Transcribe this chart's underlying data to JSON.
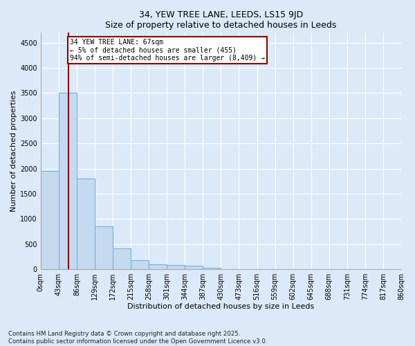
{
  "title1": "34, YEW TREE LANE, LEEDS, LS15 9JD",
  "title2": "Size of property relative to detached houses in Leeds",
  "xlabel": "Distribution of detached houses by size in Leeds",
  "ylabel": "Number of detached properties",
  "bar_values": [
    1950,
    3500,
    1800,
    850,
    420,
    175,
    100,
    80,
    70,
    30,
    0,
    0,
    0,
    0,
    0,
    0,
    0,
    0,
    0,
    0
  ],
  "bin_edges": [
    0,
    43,
    86,
    129,
    172,
    215,
    258,
    301,
    344,
    387,
    430,
    473,
    516,
    559,
    602,
    645,
    688,
    731,
    774,
    817,
    860
  ],
  "bar_color": "#c5d9f0",
  "bar_edge_color": "#6baed6",
  "property_line_x": 67,
  "property_line_color": "#8b0000",
  "annotation_line1": "34 YEW TREE LANE: 67sqm",
  "annotation_line2": "← 5% of detached houses are smaller (455)",
  "annotation_line3": "94% of semi-detached houses are larger (8,409) →",
  "annotation_box_facecolor": "white",
  "annotation_box_edgecolor": "#8b0000",
  "ylim": [
    0,
    4700
  ],
  "yticks": [
    0,
    500,
    1000,
    1500,
    2000,
    2500,
    3000,
    3500,
    4000,
    4500
  ],
  "x_labels": [
    "0sqm",
    "43sqm",
    "86sqm",
    "129sqm",
    "172sqm",
    "215sqm",
    "258sqm",
    "301sqm",
    "344sqm",
    "387sqm",
    "430sqm",
    "473sqm",
    "516sqm",
    "559sqm",
    "602sqm",
    "645sqm",
    "688sqm",
    "731sqm",
    "774sqm",
    "817sqm",
    "860sqm"
  ],
  "x_tick_positions": [
    0,
    43,
    86,
    129,
    172,
    215,
    258,
    301,
    344,
    387,
    430,
    473,
    516,
    559,
    602,
    645,
    688,
    731,
    774,
    817,
    860
  ],
  "footer": "Contains HM Land Registry data © Crown copyright and database right 2025.\nContains public sector information licensed under the Open Government Licence v3.0.",
  "bg_color": "#dce9f8",
  "grid_color": "#ffffff",
  "title_fontsize": 9,
  "label_fontsize": 8,
  "tick_fontsize": 7
}
